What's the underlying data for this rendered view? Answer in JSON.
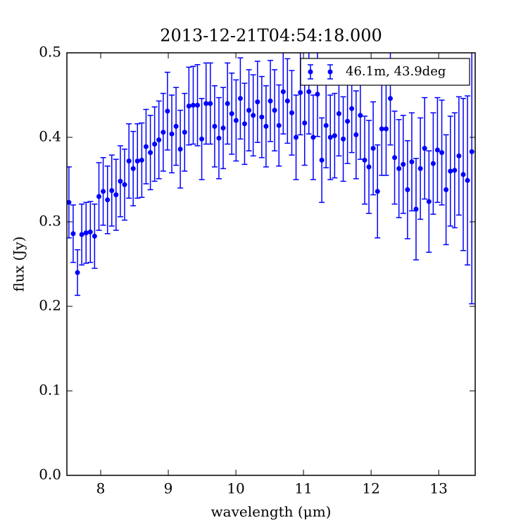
{
  "chart_data": {
    "type": "errorbar",
    "title": "2013-12-21T04:54:18.000",
    "xlabel": "wavelength (μm)",
    "ylabel": "flux (Jy)",
    "xlim": [
      7.5,
      13.54
    ],
    "ylim": [
      0,
      0.5
    ],
    "xticks": [
      8,
      9,
      10,
      11,
      12,
      13
    ],
    "yticks": [
      {
        "value": 0,
        "label": "0.0"
      },
      0.1,
      0.2,
      0.3,
      0.4,
      0.5
    ],
    "legend": "upper right",
    "series": [
      {
        "name": "46.1m, 43.9deg",
        "color": "#0000ff",
        "x": [
          7.53,
          7.593,
          7.657,
          7.72,
          7.784,
          7.847,
          7.91,
          7.974,
          8.037,
          8.101,
          8.164,
          8.227,
          8.291,
          8.354,
          8.418,
          8.481,
          8.544,
          8.608,
          8.671,
          8.735,
          8.798,
          8.861,
          8.925,
          8.988,
          9.052,
          9.115,
          9.178,
          9.242,
          9.305,
          9.369,
          9.432,
          9.495,
          9.559,
          9.622,
          9.686,
          9.749,
          9.812,
          9.876,
          9.939,
          10.003,
          10.066,
          10.129,
          10.193,
          10.256,
          10.32,
          10.383,
          10.446,
          10.51,
          10.573,
          10.637,
          10.7,
          10.763,
          10.827,
          10.89,
          10.954,
          11.017,
          11.08,
          11.144,
          11.207,
          11.271,
          11.334,
          11.397,
          11.461,
          11.524,
          11.588,
          11.651,
          11.714,
          11.778,
          11.841,
          11.905,
          11.968,
          12.031,
          12.095,
          12.158,
          12.222,
          12.285,
          12.348,
          12.412,
          12.475,
          12.539,
          12.602,
          12.665,
          12.729,
          12.792,
          12.856,
          12.919,
          12.982,
          13.046,
          13.109,
          13.173,
          13.236,
          13.299,
          13.363,
          13.426,
          13.49
        ],
        "values": [
          0.323,
          0.286,
          0.24,
          0.285,
          0.287,
          0.288,
          0.283,
          0.33,
          0.336,
          0.326,
          0.337,
          0.332,
          0.348,
          0.344,
          0.372,
          0.363,
          0.372,
          0.373,
          0.389,
          0.382,
          0.392,
          0.397,
          0.406,
          0.431,
          0.404,
          0.413,
          0.386,
          0.406,
          0.437,
          0.438,
          0.438,
          0.398,
          0.44,
          0.44,
          0.413,
          0.399,
          0.411,
          0.44,
          0.428,
          0.42,
          0.446,
          0.416,
          0.432,
          0.426,
          0.442,
          0.424,
          0.413,
          0.443,
          0.432,
          0.414,
          0.454,
          0.443,
          0.429,
          0.4,
          0.453,
          0.417,
          0.454,
          0.4,
          0.451,
          0.373,
          0.414,
          0.4,
          0.402,
          0.428,
          0.398,
          0.419,
          0.434,
          0.403,
          0.426,
          0.373,
          0.365,
          0.387,
          0.336,
          0.41,
          0.41,
          0.446,
          0.376,
          0.363,
          0.368,
          0.338,
          0.371,
          0.315,
          0.363,
          0.387,
          0.324,
          0.369,
          0.385,
          0.382,
          0.338,
          0.36,
          0.361,
          0.378,
          0.356,
          0.349,
          0.383
        ],
        "errors": [
          0.042,
          0.034,
          0.027,
          0.036,
          0.036,
          0.036,
          0.038,
          0.04,
          0.04,
          0.04,
          0.042,
          0.042,
          0.042,
          0.042,
          0.044,
          0.044,
          0.044,
          0.044,
          0.044,
          0.044,
          0.044,
          0.046,
          0.046,
          0.046,
          0.046,
          0.046,
          0.046,
          0.046,
          0.046,
          0.046,
          0.048,
          0.048,
          0.048,
          0.048,
          0.048,
          0.048,
          0.048,
          0.048,
          0.048,
          0.048,
          0.048,
          0.048,
          0.048,
          0.048,
          0.048,
          0.048,
          0.048,
          0.048,
          0.048,
          0.048,
          0.05,
          0.05,
          0.05,
          0.05,
          0.05,
          0.05,
          0.05,
          0.05,
          0.05,
          0.05,
          0.05,
          0.05,
          0.05,
          0.05,
          0.05,
          0.05,
          0.052,
          0.052,
          0.052,
          0.052,
          0.055,
          0.055,
          0.055,
          0.055,
          0.055,
          0.055,
          0.055,
          0.058,
          0.058,
          0.058,
          0.058,
          0.06,
          0.06,
          0.06,
          0.06,
          0.06,
          0.062,
          0.062,
          0.065,
          0.065,
          0.068,
          0.07,
          0.09,
          0.1,
          0.18
        ]
      }
    ]
  }
}
